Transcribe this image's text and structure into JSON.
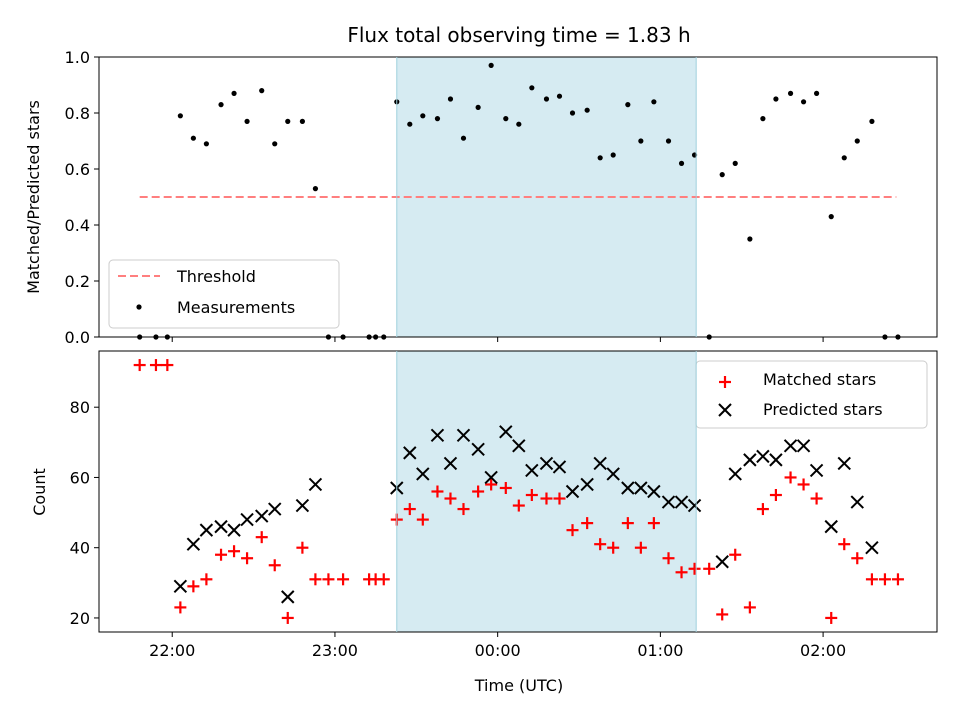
{
  "chart_data": {
    "type": "scatter",
    "title": "Flux total observing time = 1.83 h",
    "xlabel": "Time (UTC)",
    "x_unit": "hours UTC (24 = 00:00 next day)",
    "xlim": [
      21.55,
      26.7
    ],
    "xticks": [
      {
        "value": 22,
        "label": "22:00"
      },
      {
        "value": 23,
        "label": "23:00"
      },
      {
        "value": 24,
        "label": "00:00"
      },
      {
        "value": 25,
        "label": "01:00"
      },
      {
        "value": 26,
        "label": "02:00"
      }
    ],
    "highlight_span": {
      "x_start": 23.38,
      "x_end": 25.22,
      "color": "#add8e6"
    },
    "panels": [
      {
        "id": "ratio",
        "ylabel": "Matched/Predicted stars",
        "ylim": [
          0,
          1.0
        ],
        "yticks": [
          "0.0",
          "0.2",
          "0.4",
          "0.6",
          "0.8",
          "1.0"
        ],
        "legend": {
          "position": "lower-left",
          "entries": [
            "Threshold",
            "Measurements"
          ]
        },
        "threshold": {
          "name": "Threshold",
          "value": 0.5,
          "x_range": [
            21.8,
            26.45
          ],
          "color": "#ff7f7f"
        },
        "series": [
          {
            "name": "Measurements",
            "marker": "dot",
            "color": "#000000",
            "points": [
              [
                21.8,
                0.0
              ],
              [
                21.9,
                0.0
              ],
              [
                21.97,
                0.0
              ],
              [
                22.05,
                0.79
              ],
              [
                22.13,
                0.71
              ],
              [
                22.21,
                0.69
              ],
              [
                22.3,
                0.83
              ],
              [
                22.38,
                0.87
              ],
              [
                22.46,
                0.77
              ],
              [
                22.55,
                0.88
              ],
              [
                22.63,
                0.69
              ],
              [
                22.71,
                0.77
              ],
              [
                22.8,
                0.77
              ],
              [
                22.88,
                0.53
              ],
              [
                22.96,
                0.0
              ],
              [
                23.05,
                0.0
              ],
              [
                23.21,
                0.0
              ],
              [
                23.25,
                0.0
              ],
              [
                23.3,
                0.0
              ],
              [
                23.38,
                0.84
              ],
              [
                23.46,
                0.76
              ],
              [
                23.54,
                0.79
              ],
              [
                23.63,
                0.78
              ],
              [
                23.71,
                0.85
              ],
              [
                23.79,
                0.71
              ],
              [
                23.88,
                0.82
              ],
              [
                23.96,
                0.97
              ],
              [
                24.05,
                0.78
              ],
              [
                24.13,
                0.76
              ],
              [
                24.21,
                0.89
              ],
              [
                24.3,
                0.85
              ],
              [
                24.38,
                0.86
              ],
              [
                24.46,
                0.8
              ],
              [
                24.55,
                0.81
              ],
              [
                24.63,
                0.64
              ],
              [
                24.71,
                0.65
              ],
              [
                24.8,
                0.83
              ],
              [
                24.88,
                0.7
              ],
              [
                24.96,
                0.84
              ],
              [
                25.05,
                0.7
              ],
              [
                25.13,
                0.62
              ],
              [
                25.21,
                0.65
              ],
              [
                25.3,
                0.0
              ],
              [
                25.38,
                0.58
              ],
              [
                25.46,
                0.62
              ],
              [
                25.55,
                0.35
              ],
              [
                25.63,
                0.78
              ],
              [
                25.71,
                0.85
              ],
              [
                25.8,
                0.87
              ],
              [
                25.88,
                0.84
              ],
              [
                25.96,
                0.87
              ],
              [
                26.05,
                0.43
              ],
              [
                26.13,
                0.64
              ],
              [
                26.21,
                0.7
              ],
              [
                26.3,
                0.77
              ],
              [
                26.38,
                0.0
              ],
              [
                26.46,
                0.0
              ]
            ]
          }
        ]
      },
      {
        "id": "counts",
        "ylabel": "Count",
        "ylim": [
          16,
          96
        ],
        "yticks": [
          "20",
          "40",
          "60",
          "80"
        ],
        "legend": {
          "position": "top-right",
          "entries": [
            "Matched stars",
            "Predicted stars"
          ]
        },
        "series": [
          {
            "name": "Matched stars",
            "marker": "plus",
            "color": "#ff0000",
            "points": [
              [
                21.8,
                92
              ],
              [
                21.9,
                92
              ],
              [
                21.97,
                92
              ],
              [
                22.05,
                23
              ],
              [
                22.13,
                29
              ],
              [
                22.21,
                31
              ],
              [
                22.3,
                38
              ],
              [
                22.38,
                39
              ],
              [
                22.46,
                37
              ],
              [
                22.55,
                43
              ],
              [
                22.63,
                35
              ],
              [
                22.71,
                20
              ],
              [
                22.8,
                40
              ],
              [
                22.88,
                31
              ],
              [
                22.96,
                31
              ],
              [
                23.05,
                31
              ],
              [
                23.21,
                31
              ],
              [
                23.25,
                31
              ],
              [
                23.3,
                31
              ],
              [
                23.38,
                48
              ],
              [
                23.46,
                51
              ],
              [
                23.54,
                48
              ],
              [
                23.63,
                56
              ],
              [
                23.71,
                54
              ],
              [
                23.79,
                51
              ],
              [
                23.88,
                56
              ],
              [
                23.96,
                58
              ],
              [
                24.05,
                57
              ],
              [
                24.13,
                52
              ],
              [
                24.21,
                55
              ],
              [
                24.3,
                54
              ],
              [
                24.38,
                54
              ],
              [
                24.46,
                45
              ],
              [
                24.55,
                47
              ],
              [
                24.63,
                41
              ],
              [
                24.71,
                40
              ],
              [
                24.8,
                47
              ],
              [
                24.88,
                40
              ],
              [
                24.96,
                47
              ],
              [
                25.05,
                37
              ],
              [
                25.13,
                33
              ],
              [
                25.21,
                34
              ],
              [
                25.3,
                34
              ],
              [
                25.38,
                21
              ],
              [
                25.46,
                38
              ],
              [
                25.55,
                23
              ],
              [
                25.63,
                51
              ],
              [
                25.71,
                55
              ],
              [
                25.8,
                60
              ],
              [
                25.88,
                58
              ],
              [
                25.96,
                54
              ],
              [
                26.05,
                20
              ],
              [
                26.13,
                41
              ],
              [
                26.21,
                37
              ],
              [
                26.3,
                31
              ],
              [
                26.38,
                31
              ],
              [
                26.46,
                31
              ]
            ]
          },
          {
            "name": "Predicted stars",
            "marker": "x",
            "color": "#000000",
            "points": [
              [
                22.05,
                29
              ],
              [
                22.13,
                41
              ],
              [
                22.21,
                45
              ],
              [
                22.3,
                46
              ],
              [
                22.38,
                45
              ],
              [
                22.46,
                48
              ],
              [
                22.55,
                49
              ],
              [
                22.63,
                51
              ],
              [
                22.71,
                26
              ],
              [
                22.8,
                52
              ],
              [
                22.88,
                58
              ],
              [
                23.38,
                57
              ],
              [
                23.46,
                67
              ],
              [
                23.54,
                61
              ],
              [
                23.63,
                72
              ],
              [
                23.71,
                64
              ],
              [
                23.79,
                72
              ],
              [
                23.88,
                68
              ],
              [
                23.96,
                60
              ],
              [
                24.05,
                73
              ],
              [
                24.13,
                69
              ],
              [
                24.21,
                62
              ],
              [
                24.3,
                64
              ],
              [
                24.38,
                63
              ],
              [
                24.46,
                56
              ],
              [
                24.55,
                58
              ],
              [
                24.63,
                64
              ],
              [
                24.71,
                61
              ],
              [
                24.8,
                57
              ],
              [
                24.88,
                57
              ],
              [
                24.96,
                56
              ],
              [
                25.05,
                53
              ],
              [
                25.13,
                53
              ],
              [
                25.21,
                52
              ],
              [
                25.38,
                36
              ],
              [
                25.46,
                61
              ],
              [
                25.55,
                65
              ],
              [
                25.63,
                66
              ],
              [
                25.71,
                65
              ],
              [
                25.8,
                69
              ],
              [
                25.88,
                69
              ],
              [
                25.96,
                62
              ],
              [
                26.05,
                46
              ],
              [
                26.13,
                64
              ],
              [
                26.21,
                53
              ],
              [
                26.3,
                40
              ]
            ]
          }
        ]
      }
    ]
  }
}
